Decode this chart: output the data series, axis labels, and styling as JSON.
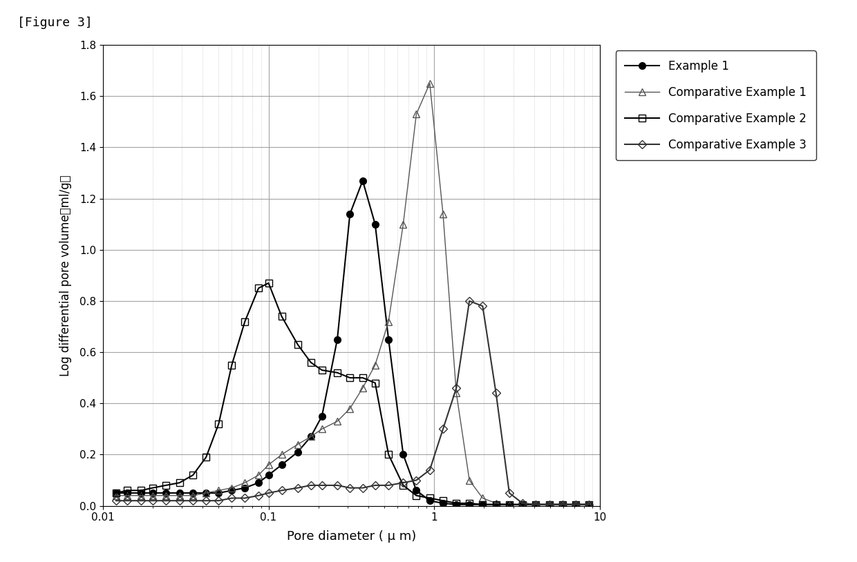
{
  "title": "[Figure 3]",
  "xlabel": "Pore diameter ( μ m)",
  "ylabel": "Log differential pore volume（ml/g）",
  "xlim": [
    0.01,
    10
  ],
  "ylim": [
    0,
    1.8
  ],
  "yticks": [
    0,
    0.2,
    0.4,
    0.6,
    0.8,
    1.0,
    1.2,
    1.4,
    1.6,
    1.8
  ],
  "background_color": "#ffffff",
  "legend": [
    "Example 1",
    "Comparative Example 1",
    "Comparative Example 2",
    "Comparative Example 3"
  ],
  "series": {
    "example1": {
      "color": "#000000",
      "marker": "o",
      "markerfacecolor": "#000000",
      "markeredgecolor": "#000000",
      "linewidth": 1.5,
      "markersize": 7,
      "x": [
        0.012,
        0.014,
        0.017,
        0.02,
        0.024,
        0.029,
        0.035,
        0.042,
        0.05,
        0.06,
        0.072,
        0.087,
        0.1,
        0.12,
        0.15,
        0.18,
        0.21,
        0.26,
        0.31,
        0.37,
        0.44,
        0.53,
        0.65,
        0.78,
        0.94,
        1.13,
        1.36,
        1.63,
        1.96,
        2.36,
        2.84,
        3.41,
        4.11,
        4.94,
        5.95,
        7.16,
        8.61
      ],
      "y": [
        0.05,
        0.05,
        0.05,
        0.05,
        0.05,
        0.05,
        0.05,
        0.05,
        0.05,
        0.06,
        0.07,
        0.09,
        0.12,
        0.16,
        0.21,
        0.27,
        0.35,
        0.65,
        1.14,
        1.27,
        1.1,
        0.65,
        0.2,
        0.06,
        0.02,
        0.01,
        0.005,
        0.005,
        0.005,
        0.005,
        0.005,
        0.005,
        0.005,
        0.005,
        0.005,
        0.005,
        0.005
      ]
    },
    "comp1": {
      "color": "#555555",
      "marker": "^",
      "markerfacecolor": "none",
      "markeredgecolor": "#555555",
      "linewidth": 1.0,
      "markersize": 7,
      "x": [
        0.012,
        0.014,
        0.017,
        0.02,
        0.024,
        0.029,
        0.035,
        0.042,
        0.05,
        0.06,
        0.072,
        0.087,
        0.1,
        0.12,
        0.15,
        0.18,
        0.21,
        0.26,
        0.31,
        0.37,
        0.44,
        0.53,
        0.65,
        0.78,
        0.94,
        1.13,
        1.36,
        1.63,
        1.96,
        2.36,
        2.84,
        3.41,
        4.11,
        4.94,
        5.95,
        7.16,
        8.61
      ],
      "y": [
        0.04,
        0.04,
        0.04,
        0.04,
        0.04,
        0.04,
        0.04,
        0.05,
        0.06,
        0.07,
        0.09,
        0.12,
        0.16,
        0.2,
        0.24,
        0.27,
        0.3,
        0.33,
        0.38,
        0.46,
        0.55,
        0.72,
        1.1,
        1.53,
        1.65,
        1.14,
        0.44,
        0.1,
        0.03,
        0.01,
        0.005,
        0.005,
        0.005,
        0.005,
        0.005,
        0.005,
        0.005
      ]
    },
    "comp2": {
      "color": "#000000",
      "marker": "s",
      "markerfacecolor": "none",
      "markeredgecolor": "#000000",
      "linewidth": 1.5,
      "markersize": 7,
      "x": [
        0.012,
        0.014,
        0.017,
        0.02,
        0.024,
        0.029,
        0.035,
        0.042,
        0.05,
        0.06,
        0.072,
        0.087,
        0.1,
        0.12,
        0.15,
        0.18,
        0.21,
        0.26,
        0.31,
        0.37,
        0.44,
        0.53,
        0.65,
        0.78,
        0.94,
        1.13,
        1.36,
        1.63,
        1.96,
        2.36,
        2.84,
        3.41,
        4.11,
        4.94,
        5.95,
        7.16,
        8.61
      ],
      "y": [
        0.05,
        0.06,
        0.06,
        0.07,
        0.08,
        0.09,
        0.12,
        0.19,
        0.32,
        0.55,
        0.72,
        0.85,
        0.87,
        0.74,
        0.63,
        0.56,
        0.53,
        0.52,
        0.5,
        0.5,
        0.48,
        0.2,
        0.08,
        0.04,
        0.03,
        0.02,
        0.01,
        0.01,
        0.005,
        0.005,
        0.005,
        0.005,
        0.005,
        0.005,
        0.005,
        0.005,
        0.005
      ]
    },
    "comp3": {
      "color": "#333333",
      "marker": "D",
      "markerfacecolor": "none",
      "markeredgecolor": "#333333",
      "linewidth": 1.5,
      "markersize": 6,
      "x": [
        0.012,
        0.014,
        0.017,
        0.02,
        0.024,
        0.029,
        0.035,
        0.042,
        0.05,
        0.06,
        0.072,
        0.087,
        0.1,
        0.12,
        0.15,
        0.18,
        0.21,
        0.26,
        0.31,
        0.37,
        0.44,
        0.53,
        0.65,
        0.78,
        0.94,
        1.13,
        1.36,
        1.63,
        1.96,
        2.36,
        2.84,
        3.41,
        4.11,
        4.94,
        5.95,
        7.16,
        8.61
      ],
      "y": [
        0.02,
        0.02,
        0.02,
        0.02,
        0.02,
        0.02,
        0.02,
        0.02,
        0.02,
        0.03,
        0.03,
        0.04,
        0.05,
        0.06,
        0.07,
        0.08,
        0.08,
        0.08,
        0.07,
        0.07,
        0.08,
        0.08,
        0.09,
        0.1,
        0.14,
        0.3,
        0.46,
        0.8,
        0.78,
        0.44,
        0.05,
        0.01,
        0.005,
        0.005,
        0.005,
        0.005,
        0.005
      ]
    }
  }
}
